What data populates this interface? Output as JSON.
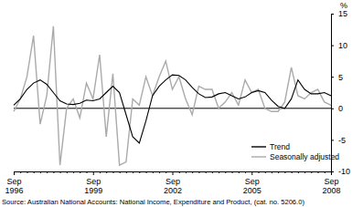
{
  "chart_data": {
    "type": "line",
    "y_label": "%",
    "source": "Source: Australian National Accounts: National Income, Expenditure and Product, (cat. no. 5206.0)",
    "categories": [
      "Sep 1996",
      null,
      null,
      null,
      null,
      null,
      null,
      null,
      null,
      null,
      null,
      null,
      "Sep 1999",
      null,
      null,
      null,
      null,
      null,
      null,
      null,
      null,
      null,
      null,
      null,
      "Sep 2002",
      null,
      null,
      null,
      null,
      null,
      null,
      null,
      null,
      null,
      null,
      null,
      "Sep 2005",
      null,
      null,
      null,
      null,
      null,
      null,
      null,
      null,
      null,
      null,
      null,
      "Sep 2008"
    ],
    "ylim": [
      -10,
      15
    ],
    "yticks": [
      -10,
      -5,
      0,
      5,
      10,
      15
    ],
    "legend": "lower right",
    "series": [
      {
        "name": "Trend",
        "color": "#000000",
        "values": [
          0.5,
          1.5,
          3,
          4,
          4.5,
          3.8,
          2.5,
          1.2,
          0.7,
          0.6,
          0.8,
          1.3,
          1.2,
          1.5,
          2.5,
          3.5,
          2.5,
          -1,
          -4.5,
          -5.5,
          -2,
          2,
          3.5,
          4.5,
          5.3,
          5.2,
          4.5,
          3.3,
          2.3,
          1.7,
          1.8,
          2.3,
          2.5,
          2.0,
          1.5,
          1.8,
          2.5,
          2.8,
          2.5,
          1.3,
          0.3,
          0,
          1.5,
          4.5,
          3.0,
          2.3,
          2.3,
          2.5,
          2.0
        ]
      },
      {
        "name": "Seasonally adjusted",
        "color": "#aaaaaa",
        "values": [
          -0.5,
          1.5,
          5,
          11.5,
          -2.5,
          2,
          13,
          -9,
          0,
          1.5,
          -1.5,
          4,
          1.5,
          8.5,
          -4.5,
          5.5,
          -9,
          -8.5,
          1.5,
          0.5,
          5,
          2,
          5,
          7.5,
          3,
          5,
          1.5,
          -1,
          3.5,
          3,
          3,
          0,
          1,
          2.5,
          0.5,
          4.5,
          2.5,
          3,
          0,
          -0.5,
          -0.5,
          1,
          6.5,
          2,
          1.5,
          2.5,
          3,
          1,
          0.5
        ]
      }
    ]
  }
}
